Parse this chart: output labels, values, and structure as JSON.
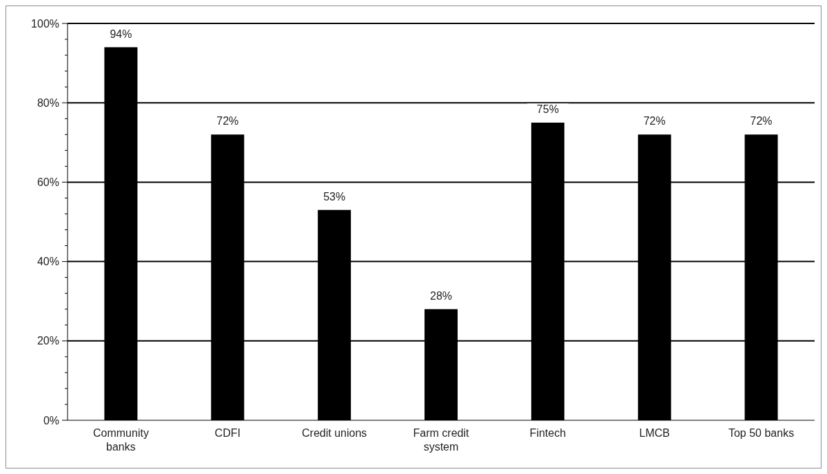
{
  "chart_data": {
    "type": "bar",
    "categories": [
      "Community banks",
      "CDFI",
      "Credit unions",
      "Farm credit system",
      "Fintech",
      "LMCB",
      "Top 50 banks"
    ],
    "values": [
      94,
      72,
      53,
      28,
      75,
      72,
      72
    ],
    "color": "#000000",
    "value_labels": [
      "94%",
      "72%",
      "53%",
      "28%",
      "75%",
      "72%",
      "72%"
    ],
    "ylim": [
      0,
      100
    ],
    "yticks": [
      {
        "value": 0,
        "label": "0%"
      },
      {
        "value": 4,
        "label": null
      },
      {
        "value": 8,
        "label": null
      },
      {
        "value": 12,
        "label": null
      },
      {
        "value": 16,
        "label": null
      },
      {
        "value": 20,
        "label": "20%"
      },
      {
        "value": 24,
        "label": null
      },
      {
        "value": 28,
        "label": null
      },
      {
        "value": 32,
        "label": null
      },
      {
        "value": 36,
        "label": null
      },
      {
        "value": 40,
        "label": "40%"
      },
      {
        "value": 44,
        "label": null
      },
      {
        "value": 48,
        "label": null
      },
      {
        "value": 52,
        "label": null
      },
      {
        "value": 56,
        "label": null
      },
      {
        "value": 60,
        "label": "60%"
      },
      {
        "value": 64,
        "label": null
      },
      {
        "value": 68,
        "label": null
      },
      {
        "value": 72,
        "label": null
      },
      {
        "value": 76,
        "label": null
      },
      {
        "value": 80,
        "label": "80%"
      },
      {
        "value": 84,
        "label": null
      },
      {
        "value": 88,
        "label": null
      },
      {
        "value": 92,
        "label": null
      },
      {
        "value": 96,
        "label": null
      },
      {
        "value": 100,
        "label": "100%"
      }
    ],
    "grid": "y"
  }
}
